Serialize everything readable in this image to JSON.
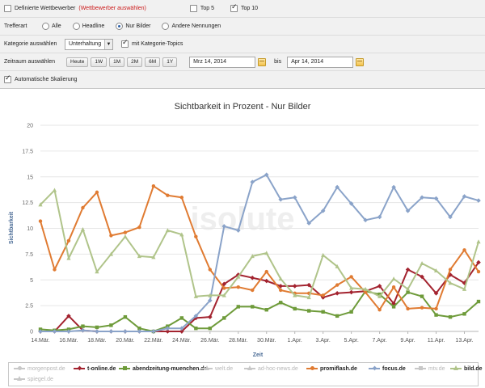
{
  "filters": {
    "competitors": {
      "label": "Definierte Wettbewerber",
      "link": "(Wettbewerber auswählen)",
      "checked": false
    },
    "top5": {
      "label": "Top 5",
      "checked": false
    },
    "top10": {
      "label": "Top 10",
      "checked": true
    },
    "hit_type": {
      "label": "Trefferart",
      "options": [
        "Alle",
        "Headline",
        "Nur Bilder",
        "Andere Nennungen"
      ],
      "selected": "Nur Bilder"
    },
    "category": {
      "label": "Kategorie auswählen",
      "value": "Unterhaltung",
      "topics_label": "mit Kategorie-Topics",
      "topics_checked": true
    },
    "period": {
      "label": "Zeitraum auswählen",
      "presets": [
        "Heute",
        "1W",
        "1M",
        "2M",
        "6M",
        "1Y"
      ],
      "from": "Mrz 14, 2014",
      "to_label": "bis",
      "to": "Apr 14, 2014"
    },
    "autoscale": {
      "label": "Automatische Skalierung",
      "checked": true
    }
  },
  "watermark": "isolute",
  "colors": {
    "morgenpost": "#cfcfcf",
    "t_online": "#a3232f",
    "abendzeitung": "#6e9b3a",
    "promiflash": "#e07b32",
    "focus": "#8aa3c9",
    "bild": "#b0c48a",
    "grid": "#e6e6e6"
  },
  "legend": [
    {
      "label": "morgenpost.de",
      "color": "#c8c8c8",
      "marker": "circle",
      "active": false
    },
    {
      "label": "t-online.de",
      "color": "#a3232f",
      "marker": "diamond",
      "active": true
    },
    {
      "label": "abendzeitung-muenchen.de",
      "color": "#6e9b3a",
      "marker": "square",
      "active": true
    },
    {
      "label": "welt.de",
      "color": "#c8c8c8",
      "marker": "triangle",
      "active": false
    },
    {
      "label": "ad-hoc-news.de",
      "color": "#c8c8c8",
      "marker": "triangle",
      "active": false
    },
    {
      "label": "promiflash.de",
      "color": "#e07b32",
      "marker": "circle",
      "active": true
    },
    {
      "label": "focus.de",
      "color": "#8aa3c9",
      "marker": "diamond",
      "active": true
    },
    {
      "label": "mtv.de",
      "color": "#c8c8c8",
      "marker": "square",
      "active": false
    },
    {
      "label": "bild.de",
      "color": "#b0c48a",
      "marker": "triangle",
      "active": true
    },
    {
      "label": "spiegel.de",
      "color": "#c8c8c8",
      "marker": "triangle",
      "active": false
    }
  ],
  "chart_data": {
    "type": "line",
    "title": "Sichtbarkeit in Prozent - Nur Bilder",
    "xlabel": "Zeit",
    "ylabel": "Sichtbarkeit",
    "ylim": [
      0,
      20
    ],
    "yticks": [
      0,
      2.5,
      5,
      7.5,
      10,
      12.5,
      15,
      17.5,
      20
    ],
    "x": [
      "14.Mär.",
      "15.Mär.",
      "16.Mär.",
      "17.Mär.",
      "18.Mär.",
      "19.Mär.",
      "20.Mär.",
      "21.Mär.",
      "22.Mär.",
      "23.Mär.",
      "24.Mär.",
      "25.Mär.",
      "26.Mär.",
      "27.Mär.",
      "28.Mär.",
      "29.Mär.",
      "30.Mär.",
      "31.Mär.",
      "1.Apr.",
      "2.Apr.",
      "3.Apr.",
      "4.Apr.",
      "5.Apr.",
      "6.Apr.",
      "7.Apr.",
      "8.Apr.",
      "9.Apr.",
      "10.Apr.",
      "11.Apr.",
      "12.Apr.",
      "13.Apr.",
      "14.Apr."
    ],
    "xticklabels": [
      "14.Mär.",
      "16.Mär.",
      "18.Mär.",
      "20.Mär.",
      "22.Mär.",
      "24.Mär.",
      "26.Mär.",
      "28.Mär.",
      "30.Mär.",
      "1.Apr.",
      "3.Apr.",
      "5.Apr.",
      "7.Apr.",
      "9.Apr.",
      "11.Apr.",
      "13.Apr."
    ],
    "grid": true,
    "series": [
      {
        "name": "t-online.de",
        "color": "#a3232f",
        "marker": "diamond",
        "values": [
          0,
          0,
          1.5,
          0.1,
          0,
          0,
          0,
          0,
          0,
          0,
          0,
          1.3,
          1.4,
          4.6,
          5.5,
          5.2,
          4.9,
          4.4,
          4.4,
          4.5,
          3.3,
          3.7,
          3.8,
          3.9,
          4.4,
          2.7,
          6.0,
          5.3,
          3.7,
          5.5,
          4.7,
          6.7
        ]
      },
      {
        "name": "abendzeitung-muenchen.de",
        "color": "#6e9b3a",
        "marker": "square",
        "values": [
          0.2,
          0.1,
          0.2,
          0.5,
          0.4,
          0.6,
          1.4,
          0.3,
          0,
          0.5,
          1.3,
          0.3,
          0.3,
          1.3,
          2.4,
          2.4,
          2.1,
          2.8,
          2.2,
          2.0,
          1.9,
          1.5,
          1.9,
          3.9,
          3.6,
          2.4,
          3.8,
          3.4,
          1.6,
          1.4,
          1.7,
          2.9
        ]
      },
      {
        "name": "promiflash.de",
        "color": "#e07b32",
        "marker": "circle",
        "values": [
          10.7,
          6.0,
          8.8,
          12.0,
          13.5,
          9.3,
          9.6,
          10.1,
          14.1,
          13.2,
          13.0,
          9.2,
          6.0,
          4.2,
          4.3,
          4.0,
          5.8,
          4.0,
          3.7,
          3.7,
          3.5,
          4.5,
          5.3,
          3.8,
          2.1,
          4.3,
          2.2,
          2.3,
          2.2,
          6.0,
          7.9,
          5.8
        ]
      },
      {
        "name": "focus.de",
        "color": "#8aa3c9",
        "marker": "diamond",
        "values": [
          0,
          0,
          0,
          0.1,
          0,
          0,
          0,
          0,
          0,
          0.3,
          0.3,
          1.5,
          3.0,
          10.2,
          9.8,
          14.5,
          15.2,
          12.8,
          13.0,
          10.5,
          11.7,
          14.0,
          12.4,
          10.8,
          11.1,
          14.0,
          11.7,
          13.0,
          12.9,
          11.1,
          13.1,
          12.7
        ]
      },
      {
        "name": "bild.de",
        "color": "#b0c48a",
        "marker": "triangle",
        "values": [
          12.3,
          13.7,
          7.1,
          9.9,
          5.8,
          7.5,
          9.2,
          7.3,
          7.2,
          9.8,
          9.4,
          3.4,
          3.5,
          3.5,
          5.3,
          7.3,
          7.6,
          5.1,
          3.5,
          3.3,
          7.4,
          6.3,
          4.2,
          4.1,
          3.4,
          5.1,
          4.1,
          6.6,
          5.9,
          4.7,
          4.1,
          8.7
        ]
      }
    ]
  }
}
